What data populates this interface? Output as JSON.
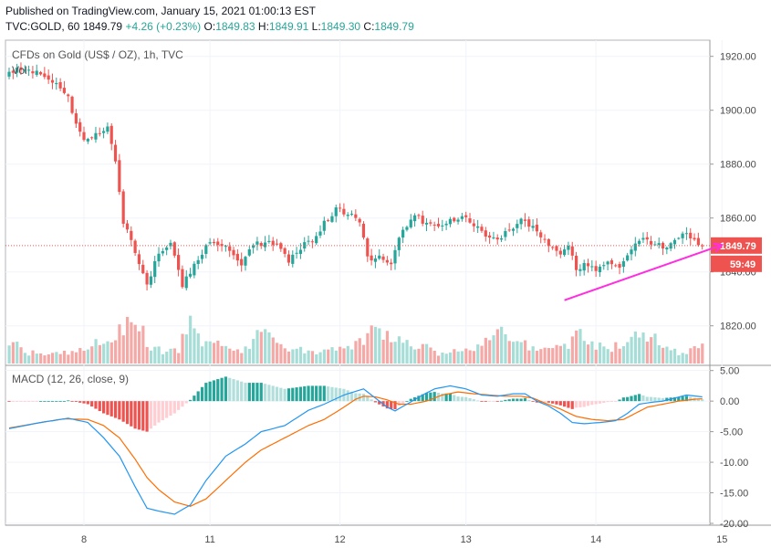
{
  "header": {
    "published": "Published on TradingView.com, January 15, 2021 01:00:13 EST",
    "symbol": "TVC:GOLD, 60",
    "last": "1849.79",
    "change": "+4.26 (+0.23%)",
    "o_label": "O:",
    "o": "1849.83",
    "h_label": "H:",
    "h": "1849.91",
    "l_label": "L:",
    "l": "1849.30",
    "c_label": "C:",
    "c": "1849.79"
  },
  "legend": {
    "title": "CFDs on Gold (US$ / OZ), 1h, TVC",
    "vol": "Vol",
    "macd": "MACD (12, 26, close, 9)"
  },
  "badges": {
    "price": "1849.79",
    "countdown": "59:49"
  },
  "colors": {
    "up": "#26a69a",
    "down": "#ef5350",
    "macd": "#2196f3",
    "signal": "#ff6d00",
    "arrow": "#ff2ee0",
    "hist_up_strong": "#26a69a",
    "hist_up_weak": "#b2dfdb",
    "hist_down_strong": "#ef5350",
    "hist_down_weak": "#ffcdd2"
  },
  "chart_data": [
    {
      "type": "candlestick",
      "title": "CFDs on Gold (US$ / OZ), 1h, TVC",
      "x_ticks": [
        "8",
        "11",
        "12",
        "13",
        "14",
        "15"
      ],
      "y_ticks": [
        "1920.00",
        "1900.00",
        "1880.00",
        "1860.00",
        "1840.00",
        "1820.00"
      ],
      "ylim": [
        1806,
        1926
      ],
      "last_price": 1849.79,
      "anchors": [
        [
          0,
          1912
        ],
        [
          3,
          1916
        ],
        [
          8,
          1914
        ],
        [
          13,
          1910
        ],
        [
          16,
          1905
        ],
        [
          18,
          1895
        ],
        [
          20,
          1888
        ],
        [
          23,
          1892
        ],
        [
          26,
          1893
        ],
        [
          28,
          1880
        ],
        [
          30,
          1858
        ],
        [
          33,
          1848
        ],
        [
          36,
          1835
        ],
        [
          39,
          1847
        ],
        [
          42,
          1850
        ],
        [
          45,
          1835
        ],
        [
          48,
          1842
        ],
        [
          51,
          1850
        ],
        [
          54,
          1851
        ],
        [
          57,
          1848
        ],
        [
          60,
          1842
        ],
        [
          63,
          1850
        ],
        [
          66,
          1851
        ],
        [
          69,
          1850
        ],
        [
          72,
          1844
        ],
        [
          75,
          1849
        ],
        [
          78,
          1852
        ],
        [
          81,
          1858
        ],
        [
          84,
          1863
        ],
        [
          87,
          1862
        ],
        [
          90,
          1859
        ],
        [
          92,
          1845
        ],
        [
          95,
          1846
        ],
        [
          98,
          1843
        ],
        [
          101,
          1856
        ],
        [
          104,
          1861
        ],
        [
          107,
          1858
        ],
        [
          110,
          1856
        ],
        [
          113,
          1859
        ],
        [
          116,
          1860
        ],
        [
          119,
          1858
        ],
        [
          122,
          1853
        ],
        [
          125,
          1852
        ],
        [
          128,
          1856
        ],
        [
          131,
          1859
        ],
        [
          134,
          1856
        ],
        [
          137,
          1852
        ],
        [
          139,
          1849
        ],
        [
          141,
          1846
        ],
        [
          143,
          1850
        ],
        [
          145,
          1840
        ],
        [
          147,
          1844
        ],
        [
          150,
          1841
        ],
        [
          153,
          1843
        ],
        [
          156,
          1842
        ],
        [
          158,
          1846
        ],
        [
          161,
          1852
        ],
        [
          164,
          1851
        ],
        [
          167,
          1849
        ],
        [
          170,
          1852
        ],
        [
          173,
          1854
        ],
        [
          176,
          1850
        ]
      ],
      "volume": {
        "label": "Vol",
        "anchors": [
          [
            0,
            0.45
          ],
          [
            5,
            0.2
          ],
          [
            10,
            0.15
          ],
          [
            15,
            0.2
          ],
          [
            20,
            0.3
          ],
          [
            25,
            0.45
          ],
          [
            28,
            0.55
          ],
          [
            31,
            0.75
          ],
          [
            33,
            0.65
          ],
          [
            36,
            0.3
          ],
          [
            40,
            0.2
          ],
          [
            43,
            0.25
          ],
          [
            46,
            0.75
          ],
          [
            49,
            0.3
          ],
          [
            52,
            0.35
          ],
          [
            55,
            0.3
          ],
          [
            58,
            0.25
          ],
          [
            61,
            0.3
          ],
          [
            64,
            0.8
          ],
          [
            66,
            0.5
          ],
          [
            70,
            0.3
          ],
          [
            74,
            0.25
          ],
          [
            78,
            0.2
          ],
          [
            82,
            0.3
          ],
          [
            86,
            0.35
          ],
          [
            90,
            0.4
          ],
          [
            93,
            0.75
          ],
          [
            96,
            0.5
          ],
          [
            100,
            0.4
          ],
          [
            104,
            0.35
          ],
          [
            108,
            0.2
          ],
          [
            112,
            0.2
          ],
          [
            116,
            0.25
          ],
          [
            120,
            0.3
          ],
          [
            124,
            0.55
          ],
          [
            127,
            0.55
          ],
          [
            130,
            0.35
          ],
          [
            134,
            0.3
          ],
          [
            138,
            0.25
          ],
          [
            142,
            0.3
          ],
          [
            145,
            0.55
          ],
          [
            148,
            0.35
          ],
          [
            152,
            0.3
          ],
          [
            156,
            0.3
          ],
          [
            159,
            0.65
          ],
          [
            162,
            0.5
          ],
          [
            166,
            0.35
          ],
          [
            170,
            0.2
          ],
          [
            174,
            0.25
          ],
          [
            176,
            0.3
          ]
        ]
      }
    },
    {
      "type": "line",
      "title": "MACD (12, 26, close, 9)",
      "x_ticks": [
        "8",
        "11",
        "12",
        "13",
        "14",
        "15"
      ],
      "y_ticks": [
        "5.00",
        "0.00",
        "-5.00",
        "-10.00",
        "-15.00",
        "-20.00"
      ],
      "ylim": [
        -20.3,
        5.7
      ],
      "series": [
        {
          "role": "macd",
          "anchors": [
            [
              0,
              -4.5
            ],
            [
              8,
              -3.5
            ],
            [
              15,
              -2.8
            ],
            [
              20,
              -3.5
            ],
            [
              24,
              -6
            ],
            [
              28,
              -9
            ],
            [
              32,
              -14
            ],
            [
              35,
              -17.5
            ],
            [
              38,
              -18
            ],
            [
              42,
              -18.5
            ],
            [
              46,
              -17
            ],
            [
              50,
              -13
            ],
            [
              55,
              -9
            ],
            [
              60,
              -7
            ],
            [
              64,
              -5
            ],
            [
              70,
              -4
            ],
            [
              76,
              -1.5
            ],
            [
              80,
              -0.5
            ],
            [
              85,
              1
            ],
            [
              90,
              2
            ],
            [
              93,
              0.5
            ],
            [
              96,
              -1
            ],
            [
              98,
              -1.6
            ],
            [
              101,
              -0.5
            ],
            [
              105,
              1
            ],
            [
              108,
              2
            ],
            [
              112,
              2.5
            ],
            [
              116,
              2
            ],
            [
              120,
              1
            ],
            [
              124,
              0.8
            ],
            [
              128,
              1.2
            ],
            [
              131,
              1.2
            ],
            [
              134,
              0
            ],
            [
              137,
              -0.8
            ],
            [
              140,
              -2
            ],
            [
              143,
              -3.5
            ],
            [
              146,
              -3.7
            ],
            [
              150,
              -3.5
            ],
            [
              154,
              -3.2
            ],
            [
              157,
              -2
            ],
            [
              160,
              -0.5
            ],
            [
              163,
              -0.2
            ],
            [
              166,
              0
            ],
            [
              169,
              0.5
            ],
            [
              172,
              1
            ],
            [
              176,
              0.7
            ]
          ]
        },
        {
          "role": "signal",
          "anchors": [
            [
              0,
              -4.4
            ],
            [
              8,
              -3.5
            ],
            [
              14,
              -2.9
            ],
            [
              20,
              -3
            ],
            [
              24,
              -4
            ],
            [
              28,
              -6
            ],
            [
              32,
              -9.5
            ],
            [
              35,
              -12.5
            ],
            [
              38,
              -14.5
            ],
            [
              42,
              -16.5
            ],
            [
              46,
              -17.2
            ],
            [
              50,
              -16
            ],
            [
              55,
              -13
            ],
            [
              60,
              -10
            ],
            [
              64,
              -8
            ],
            [
              70,
              -6
            ],
            [
              76,
              -4
            ],
            [
              80,
              -3
            ],
            [
              85,
              -1
            ],
            [
              88,
              0.3
            ],
            [
              90,
              0.8
            ],
            [
              93,
              0.7
            ],
            [
              96,
              0.2
            ],
            [
              99,
              -0.5
            ],
            [
              102,
              -0.5
            ],
            [
              106,
              0
            ],
            [
              110,
              1
            ],
            [
              114,
              1.5
            ],
            [
              118,
              1.2
            ],
            [
              122,
              1
            ],
            [
              126,
              0.8
            ],
            [
              130,
              0.8
            ],
            [
              133,
              0.5
            ],
            [
              136,
              -0.3
            ],
            [
              140,
              -1.3
            ],
            [
              144,
              -2.5
            ],
            [
              148,
              -3
            ],
            [
              152,
              -3.2
            ],
            [
              156,
              -3
            ],
            [
              159,
              -2
            ],
            [
              162,
              -1
            ],
            [
              166,
              -0.5
            ],
            [
              170,
              0
            ],
            [
              174,
              0.3
            ],
            [
              176,
              0.4
            ]
          ]
        }
      ]
    }
  ]
}
